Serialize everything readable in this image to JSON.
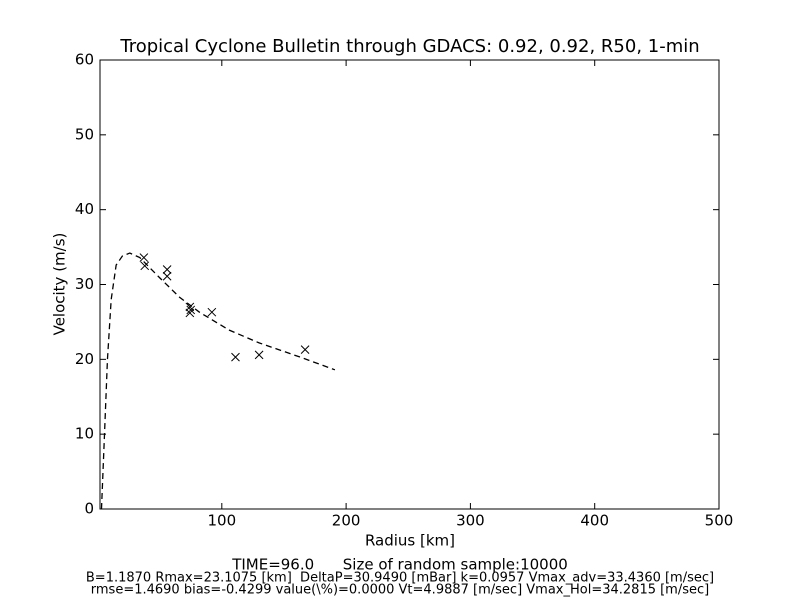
{
  "chart_data": {
    "type": "line",
    "title": "Tropical Cyclone Bulletin through GDACS: 0.92, 0.92, R50, 1-min",
    "x_label": "Radius [km]",
    "y_label": "Velocity (m/s)",
    "xlim": [
      2,
      500
    ],
    "ylim": [
      0,
      60
    ],
    "xticks": [
      100,
      200,
      300,
      400,
      500
    ],
    "yticks": [
      0,
      10,
      20,
      30,
      40,
      50,
      60
    ],
    "grid": false,
    "series": [
      {
        "type": "line",
        "color": "#000000",
        "dashed": true,
        "x": [
          3.2,
          5.6,
          8,
          11,
          15,
          20,
          26,
          34,
          50,
          66,
          82,
          106,
          130,
          163,
          191
        ],
        "values": [
          0,
          9.9,
          20,
          28,
          32.6,
          33.8,
          34.2,
          33.6,
          30.9,
          28.3,
          26.3,
          23.9,
          22.2,
          20.3,
          18.6
        ]
      },
      {
        "type": "scatter",
        "color": "#000000",
        "x": [
          37.3,
          38,
          56,
          56,
          74.3,
          74.3,
          75,
          92,
          111,
          130,
          167
        ],
        "values": [
          33.6,
          32.5,
          32.0,
          31.1,
          27.0,
          26.2,
          26.6,
          26.3,
          20.3,
          20.6,
          21.3
        ]
      }
    ],
    "annotations": [
      "TIME=96.0      Size of random sample:10000",
      "B=1.1870 Rmax=23.1075 [km]  DeltaP=30.9490 [mBar] k=0.0957 Vmax_adv=33.4360 [m/sec]",
      "rmse=1.4690 bias=-0.4299 value(\\%)=0.0000 Vt=4.9887 [m/sec] Vmax_Hol=34.2815 [m/sec]"
    ]
  }
}
